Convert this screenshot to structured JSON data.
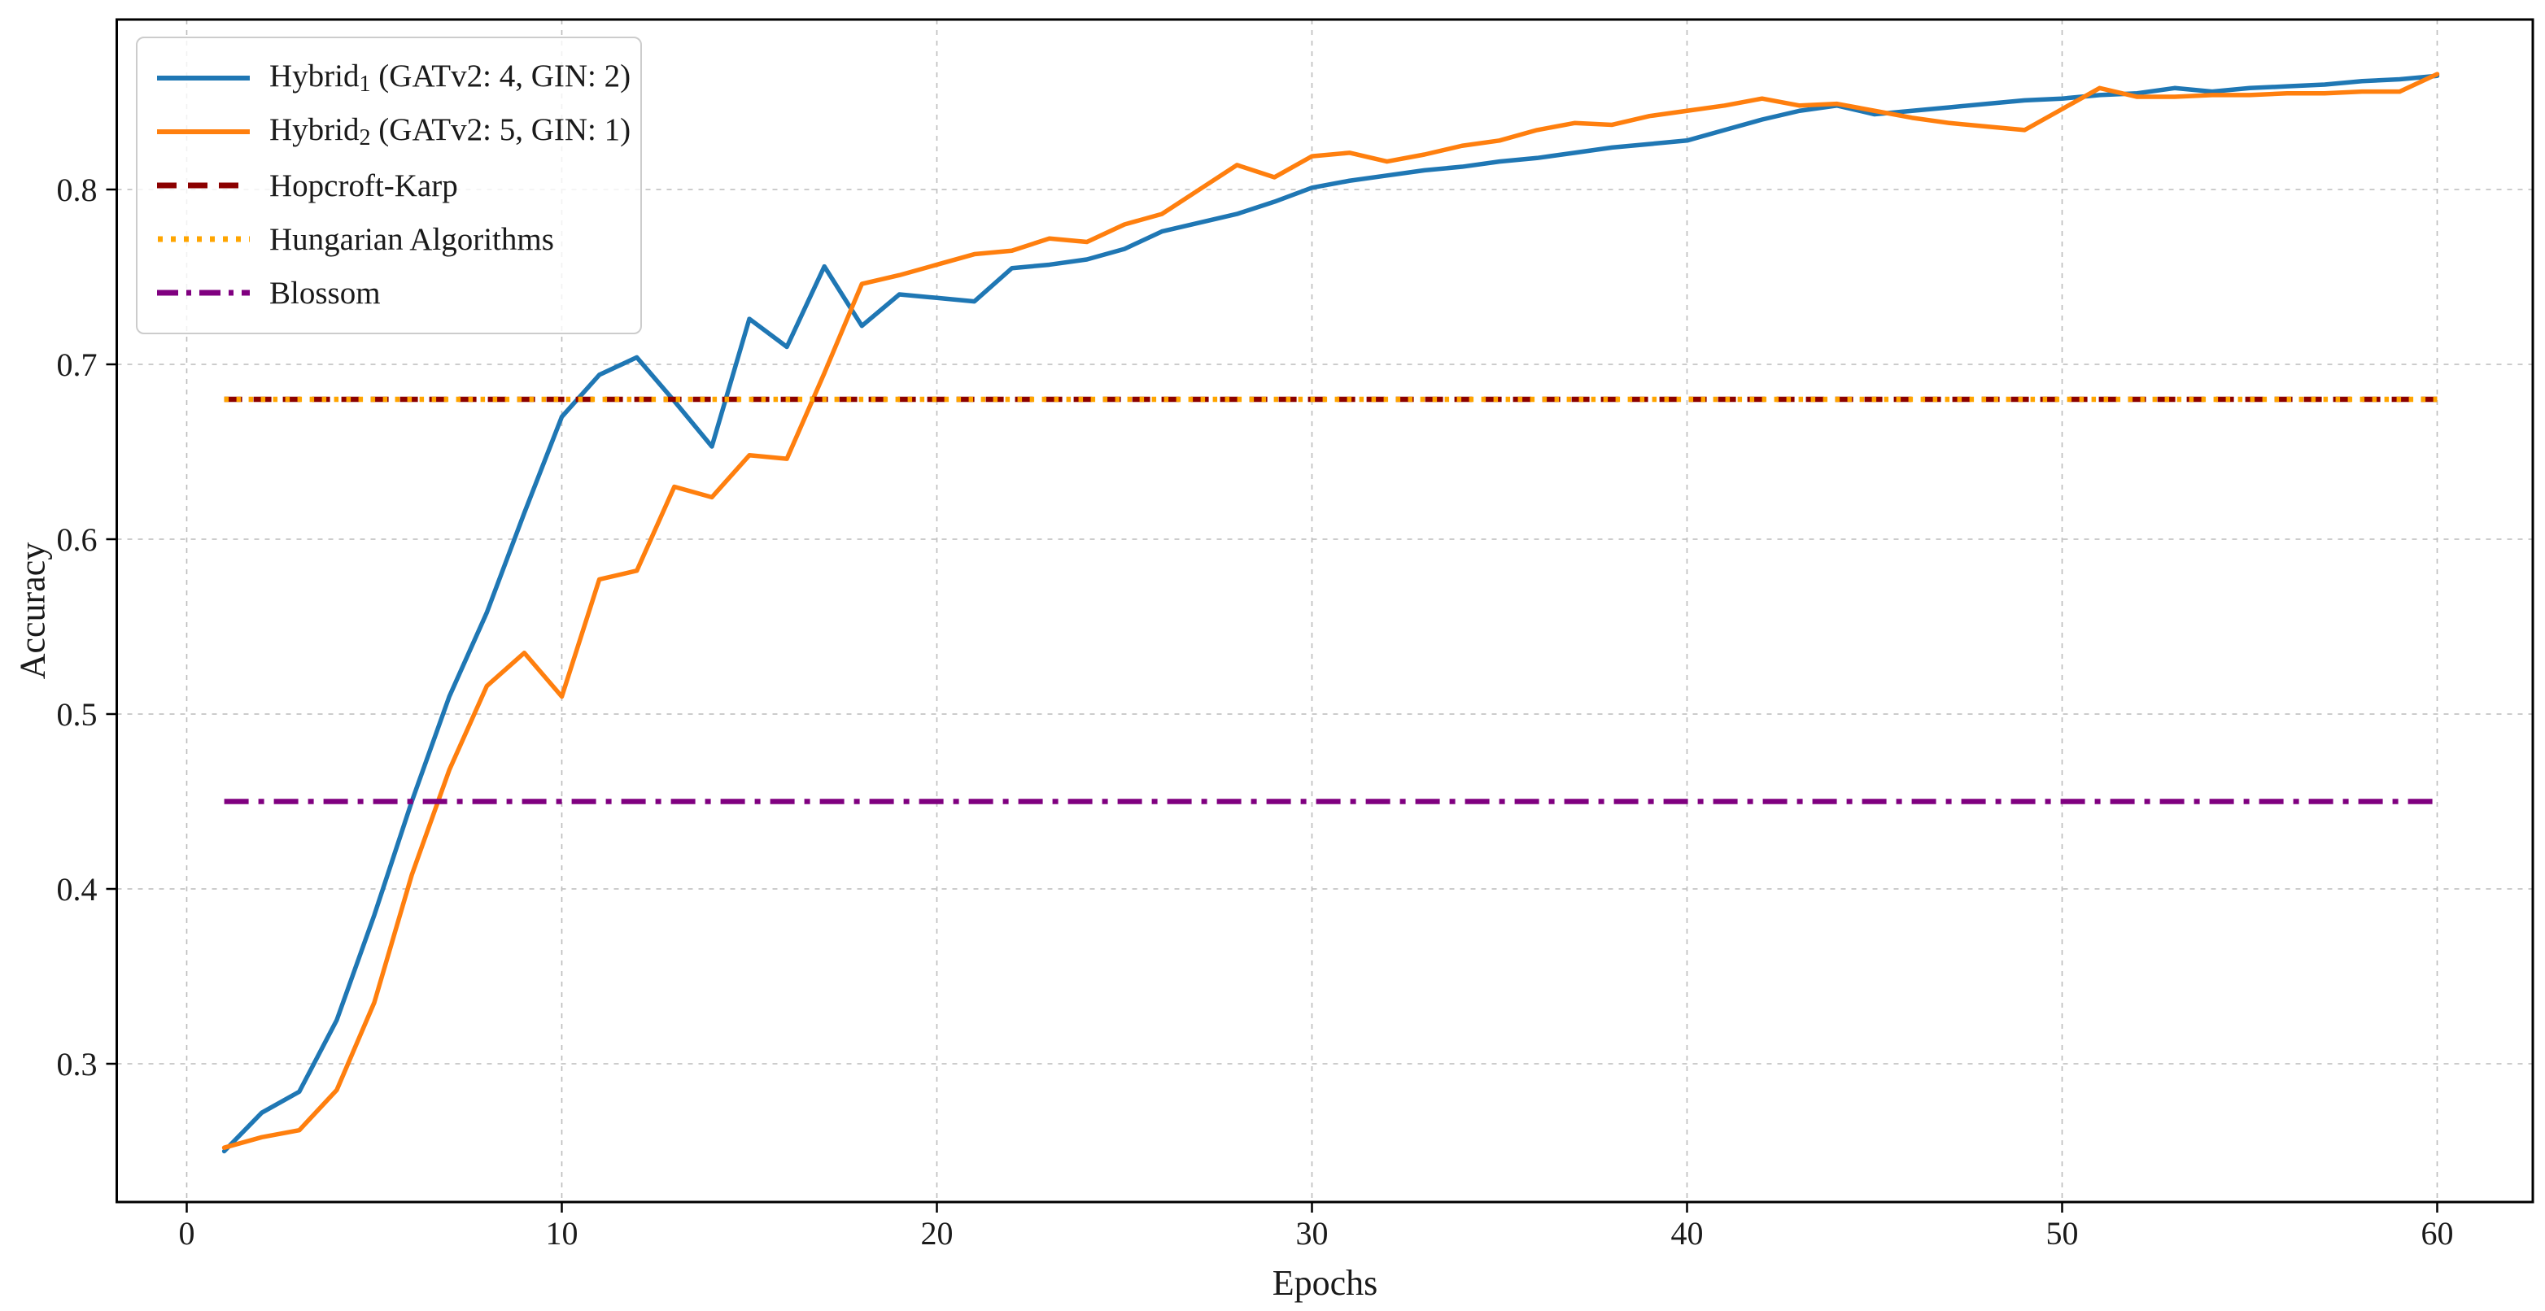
{
  "figure": {
    "background": "#ffffff"
  },
  "chart_data": {
    "type": "line",
    "title": "",
    "xlabel": "Epochs",
    "ylabel": "Accuracy",
    "x_ticks": [
      0,
      10,
      20,
      30,
      40,
      50,
      60
    ],
    "y_ticks": [
      0.3,
      0.4,
      0.5,
      0.6,
      0.7,
      0.8
    ],
    "xlim": [
      -1.9,
      62.2
    ],
    "ylim": [
      0.215,
      0.9
    ],
    "grid": "dashed-both-axes",
    "legend_position": "upper left",
    "x": [
      1,
      2,
      3,
      4,
      5,
      6,
      7,
      8,
      9,
      10,
      11,
      12,
      13,
      14,
      15,
      16,
      17,
      18,
      19,
      20,
      21,
      22,
      23,
      24,
      25,
      26,
      27,
      28,
      29,
      30,
      31,
      32,
      33,
      34,
      35,
      36,
      37,
      38,
      39,
      40,
      41,
      42,
      43,
      44,
      45,
      46,
      47,
      48,
      49,
      50,
      51,
      52,
      53,
      54,
      55,
      56,
      57,
      58,
      59,
      60
    ],
    "series": [
      {
        "name_base": "Hybrid",
        "name_sub": "1",
        "name_rest": " (GATv2: 4, GIN: 2)",
        "color": "#1f77b4",
        "style": "solid",
        "values": [
          0.25,
          0.272,
          0.284,
          0.325,
          0.385,
          0.45,
          0.51,
          0.558,
          0.615,
          0.67,
          0.694,
          0.704,
          0.679,
          0.653,
          0.726,
          0.71,
          0.756,
          0.722,
          0.74,
          0.738,
          0.736,
          0.755,
          0.757,
          0.76,
          0.766,
          0.776,
          0.781,
          0.786,
          0.793,
          0.801,
          0.805,
          0.808,
          0.811,
          0.813,
          0.816,
          0.818,
          0.821,
          0.824,
          0.826,
          0.828,
          0.834,
          0.84,
          0.845,
          0.848,
          0.843,
          0.845,
          0.847,
          0.849,
          0.851,
          0.852,
          0.854,
          0.855,
          0.858,
          0.856,
          0.858,
          0.859,
          0.86,
          0.862,
          0.863,
          0.865
        ]
      },
      {
        "name_base": "Hybrid",
        "name_sub": "2",
        "name_rest": " (GATv2: 5, GIN: 1)",
        "color": "#ff7f0e",
        "style": "solid",
        "values": [
          0.252,
          0.258,
          0.262,
          0.285,
          0.335,
          0.408,
          0.468,
          0.516,
          0.535,
          0.51,
          0.577,
          0.582,
          0.63,
          0.624,
          0.648,
          0.646,
          0.695,
          0.746,
          0.751,
          0.757,
          0.763,
          0.765,
          0.772,
          0.77,
          0.78,
          0.786,
          0.8,
          0.814,
          0.807,
          0.819,
          0.821,
          0.816,
          0.82,
          0.825,
          0.828,
          0.834,
          0.838,
          0.837,
          0.842,
          0.845,
          0.848,
          0.852,
          0.848,
          0.849,
          0.845,
          0.841,
          0.838,
          0.836,
          0.834,
          0.846,
          0.858,
          0.853,
          0.853,
          0.854,
          0.854,
          0.855,
          0.855,
          0.856,
          0.856,
          0.866
        ]
      },
      {
        "name": "Hopcroft-Karp",
        "color": "#8b0000",
        "style": "dashed",
        "value": 0.68,
        "x_span": [
          1,
          60
        ]
      },
      {
        "name": "Hungarian Algorithms",
        "color": "#ffa500",
        "style": "dotted",
        "value": 0.68,
        "x_span": [
          1,
          60
        ]
      },
      {
        "name": "Blossom",
        "color": "#800080",
        "style": "dashdot",
        "value": 0.45,
        "x_span": [
          1,
          60
        ]
      }
    ]
  }
}
